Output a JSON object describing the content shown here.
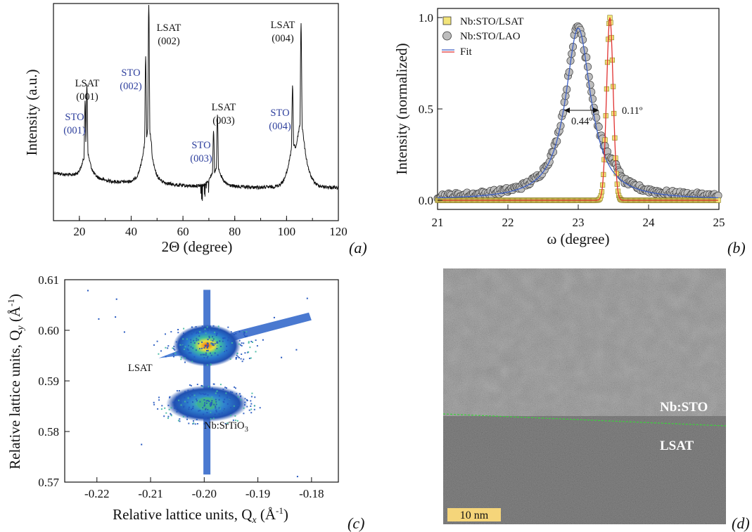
{
  "chart_data": [
    {
      "panel": "(a)",
      "type": "line",
      "xlabel": "2Θ (degree)",
      "ylabel": "Intensity (a.u.)",
      "xlim": [
        10,
        120
      ],
      "xticks": [
        20,
        40,
        60,
        80,
        100,
        120
      ],
      "log_scale_y": true,
      "grid": false,
      "peaks": [
        {
          "x": 22.2,
          "label_top": "STO",
          "label_bottom": "(001)",
          "color": "#2c3e9c",
          "rel_height": 0.45
        },
        {
          "x": 22.9,
          "label_top": "LSAT",
          "label_bottom": "(001)",
          "color": "#111111",
          "rel_height": 0.55
        },
        {
          "x": 45.6,
          "label_top": "STO",
          "label_bottom": "(002)",
          "color": "#2c3e9c",
          "rel_height": 0.7
        },
        {
          "x": 46.8,
          "label_top": "LSAT",
          "label_bottom": "(002)",
          "color": "#111111",
          "rel_height": 1.0
        },
        {
          "x": 71.8,
          "label_top": "STO",
          "label_bottom": "(003)",
          "color": "#2c3e9c",
          "rel_height": 0.32
        },
        {
          "x": 73.3,
          "label_top": "LSAT",
          "label_bottom": "(003)",
          "color": "#111111",
          "rel_height": 0.42
        },
        {
          "x": 102.3,
          "label_top": "STO",
          "label_bottom": "(004)",
          "color": "#2c3e9c",
          "rel_height": 0.48
        },
        {
          "x": 105.6,
          "label_top": "LSAT",
          "label_bottom": "(004)",
          "color": "#111111",
          "rel_height": 0.82
        }
      ]
    },
    {
      "panel": "(b)",
      "type": "scatter",
      "xlabel": "ω (degree)",
      "ylabel": "Intensity (normalized)",
      "xlim": [
        21,
        25
      ],
      "ylim": [
        -0.05,
        1.05
      ],
      "xticks": [
        21,
        22,
        23,
        24,
        25
      ],
      "yticks": [
        0.0,
        0.5,
        1.0
      ],
      "legend_position": "top-left",
      "series": [
        {
          "name": "Nb:STO/LSAT",
          "marker": "square",
          "color": "#f2e47a",
          "center": 23.45,
          "fwhm": 0.11
        },
        {
          "name": "Nb:STO/LAO",
          "marker": "circle",
          "color": "#bdbdbd",
          "center": 23.0,
          "fwhm": 0.44
        },
        {
          "name": "Fit",
          "marker": "line",
          "colors": [
            "#3d5fc4",
            "#e03030"
          ]
        }
      ],
      "annotations": [
        "0.44º",
        "0.11º"
      ]
    },
    {
      "panel": "(c)",
      "type": "heatmap",
      "xlabel": "Relative lattice units, Q",
      "xlabel_sub": "x",
      "xlabel_unit": " (Å",
      "xlabel_sup": "-1",
      "xlabel_close": ")",
      "ylabel": "Relative lattice units, Q",
      "ylabel_sub": "y",
      "ylabel_unit": " (Å",
      "ylabel_sup": "-1",
      "ylabel_close": ")",
      "xlim": [
        -0.226,
        -0.175
      ],
      "ylim": [
        0.57,
        0.61
      ],
      "xticks": [
        -0.22,
        -0.21,
        -0.2,
        -0.19,
        -0.18
      ],
      "yticks": [
        0.57,
        0.58,
        0.59,
        0.6,
        0.61
      ],
      "spots": [
        {
          "label": "LSAT",
          "qx": -0.1995,
          "qy": 0.597
        },
        {
          "label_main": "Nb:SrTiO",
          "label_sub": "3",
          "qx": -0.1995,
          "qy": 0.5855
        }
      ]
    },
    {
      "panel": "(d)",
      "type": "image",
      "labels": [
        "Nb:STO",
        "LSAT"
      ],
      "scale_bar": "10 nm"
    }
  ]
}
